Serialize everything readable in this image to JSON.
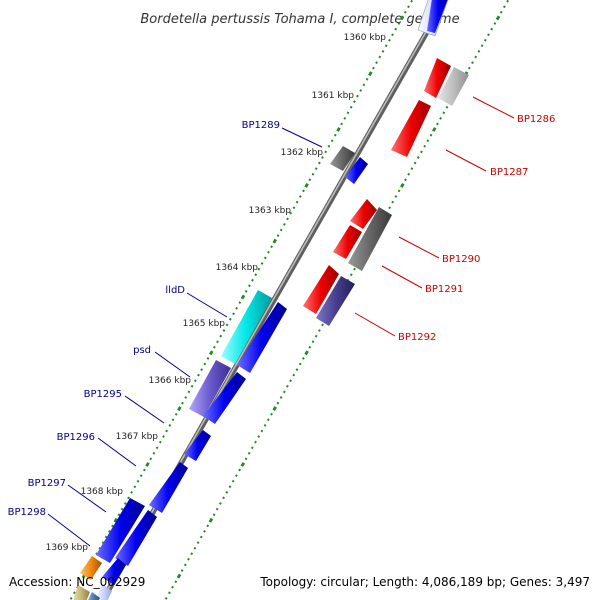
{
  "title": "Bordetella pertussis Tohama I, complete genome",
  "footer": {
    "accession": "Accession: NC_002929",
    "topology": "Topology: circular; Length: 4,086,189 bp; Genes: 3,497"
  },
  "colors": {
    "backbone": "#8a8a8a",
    "tick": "#1f8a1f",
    "label_blue": "#00008b",
    "label_red": "#cc0000"
  },
  "scale_labels": [
    "1360 kbp",
    "1361 kbp",
    "1362 kbp",
    "1363 kbp",
    "1364 kbp",
    "1365 kbp",
    "1366 kbp",
    "1367 kbp",
    "1368 kbp",
    "1369 kbp"
  ],
  "gene_labels_left": [
    "BP1289",
    "lldD",
    "psd",
    "BP1295",
    "BP1296",
    "BP1297",
    "BP1298"
  ],
  "gene_labels_right": [
    "BP1286",
    "BP1287",
    "BP1290",
    "BP1291",
    "BP1292"
  ]
}
